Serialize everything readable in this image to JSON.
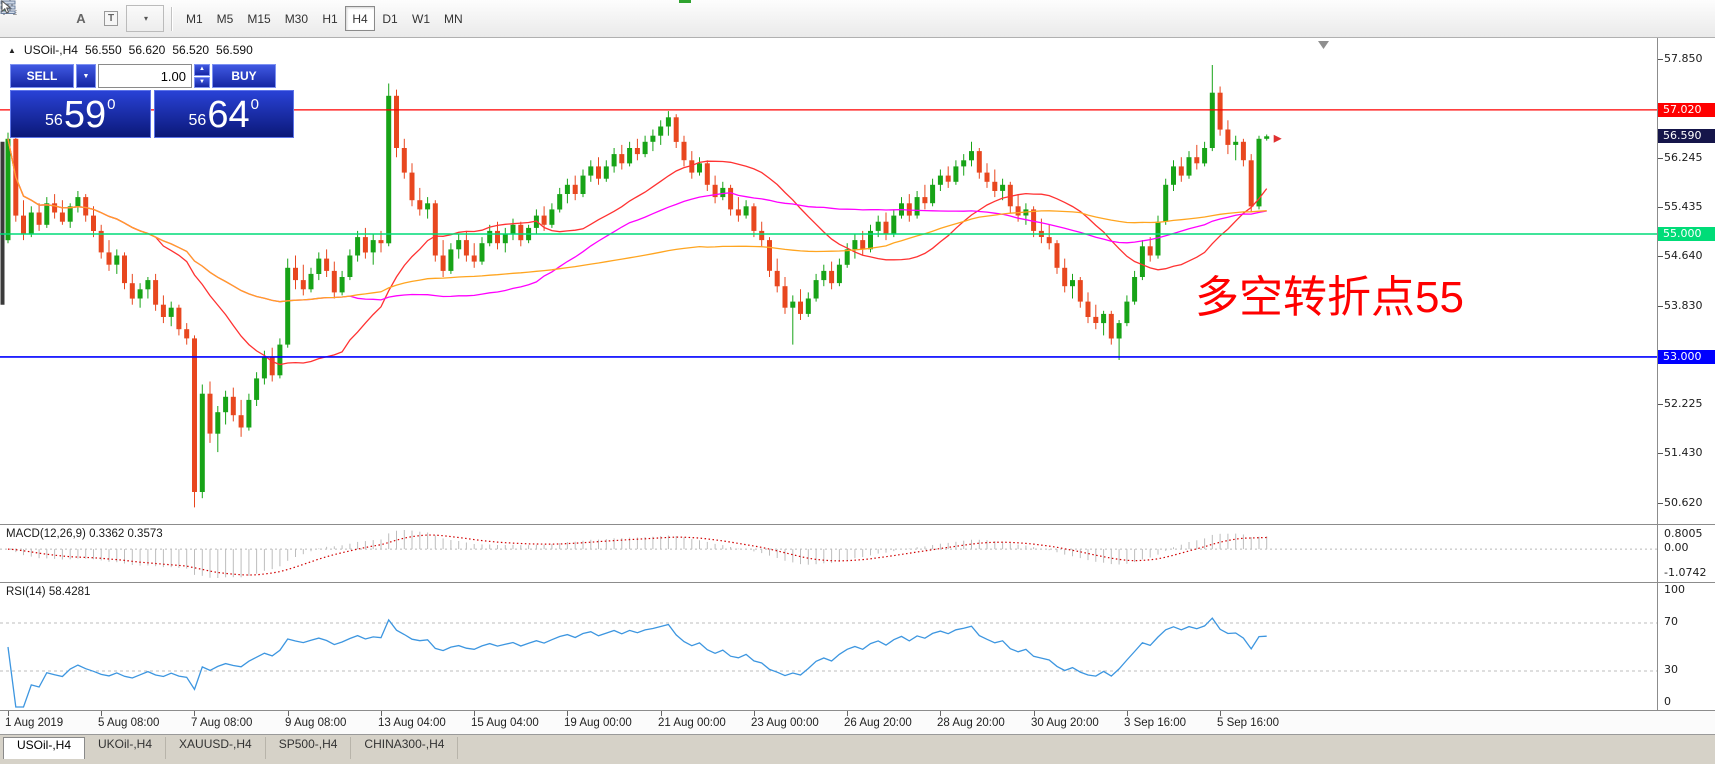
{
  "toolbar": {
    "tool_icons": [
      {
        "name": "candlestick-chart-icon"
      },
      {
        "name": "window-list-icon"
      },
      {
        "name": "font-icon",
        "glyph": "A"
      },
      {
        "name": "text-box-icon",
        "glyph": "T"
      },
      {
        "name": "cursor-tool-icon"
      }
    ],
    "timeframes": [
      {
        "label": "M1",
        "active": false
      },
      {
        "label": "M5",
        "active": false
      },
      {
        "label": "M15",
        "active": false
      },
      {
        "label": "M30",
        "active": false
      },
      {
        "label": "H1",
        "active": false
      },
      {
        "label": "H4",
        "active": true
      },
      {
        "label": "D1",
        "active": false
      },
      {
        "label": "W1",
        "active": false
      },
      {
        "label": "MN",
        "active": false
      }
    ]
  },
  "chart": {
    "symbol_header": "USOil-,H4",
    "ohlc": {
      "open": "56.550",
      "high": "56.620",
      "low": "56.520",
      "close": "56.590"
    },
    "trade_panel": {
      "sell_label": "SELL",
      "buy_label": "BUY",
      "volume": "1.00",
      "sell_price": {
        "main": "56",
        "pips": "59",
        "pipette": "0"
      },
      "buy_price": {
        "main": "56",
        "pips": "64",
        "pipette": "0"
      }
    },
    "annotation": {
      "text": "多空转折点55",
      "color": "#FF0000"
    },
    "colors": {
      "bull": "#17A317",
      "bear": "#E8471F"
    },
    "price_range": {
      "top": 58.19,
      "bottom": 50.28
    },
    "current_price": {
      "value": 56.59,
      "label": "56.590",
      "bg": "#15154A"
    },
    "hlines": [
      {
        "price": 57.02,
        "label": "57.020",
        "color": "#FF0000",
        "width": 1.3
      },
      {
        "price": 55.0,
        "label": "55.000",
        "color": "#00DC78",
        "width": 1.6
      },
      {
        "price": 53.0,
        "label": "53.000",
        "color": "#0000FF",
        "width": 1.6
      }
    ],
    "axis_ticks": [
      {
        "price": 57.85,
        "label": "57.850"
      },
      {
        "price": 56.245,
        "label": "56.245"
      },
      {
        "price": 55.435,
        "label": "55.435"
      },
      {
        "price": 54.64,
        "label": "54.640"
      },
      {
        "price": 53.83,
        "label": "53.830"
      },
      {
        "price": 52.225,
        "label": "52.225"
      },
      {
        "price": 51.43,
        "label": "51.430"
      },
      {
        "price": 50.62,
        "label": "50.620"
      }
    ],
    "ma_lines": [
      {
        "period": 20,
        "color": "#FF3232"
      },
      {
        "period": 45,
        "color": "#FF00FF"
      },
      {
        "period": 90,
        "color": "#FFA520"
      }
    ],
    "chart_data": {
      "type": "candlestick",
      "symbol": "USOil",
      "timeframe": "H4",
      "ylim": [
        50.28,
        58.19
      ],
      "x_labels": [
        {
          "bar": 0,
          "label": "1 Aug 2019"
        },
        {
          "bar": 12,
          "label": "5 Aug 08:00"
        },
        {
          "bar": 24,
          "label": "7 Aug 08:00"
        },
        {
          "bar": 36,
          "label": "9 Aug 08:00"
        },
        {
          "bar": 48,
          "label": "13 Aug 04:00"
        },
        {
          "bar": 60,
          "label": "15 Aug 04:00"
        },
        {
          "bar": 72,
          "label": "19 Aug 00:00"
        },
        {
          "bar": 84,
          "label": "21 Aug 00:00"
        },
        {
          "bar": 96,
          "label": "23 Aug 00:00"
        },
        {
          "bar": 108,
          "label": "26 Aug 20:00"
        },
        {
          "bar": 120,
          "label": "28 Aug 20:00"
        },
        {
          "bar": 132,
          "label": "30 Aug 20:00"
        },
        {
          "bar": 144,
          "label": "3 Sep 16:00"
        },
        {
          "bar": 156,
          "label": "5 Sep 16:00"
        }
      ],
      "candles": [
        [
          54.9,
          56.65,
          54.85,
          56.55
        ],
        [
          56.55,
          56.6,
          55.2,
          55.3
        ],
        [
          55.3,
          55.55,
          54.9,
          55.0
        ],
        [
          55.0,
          55.45,
          54.95,
          55.35
        ],
        [
          55.35,
          55.5,
          55.05,
          55.15
        ],
        [
          55.15,
          55.6,
          55.1,
          55.5
        ],
        [
          55.5,
          55.65,
          55.25,
          55.35
        ],
        [
          55.35,
          55.55,
          55.15,
          55.2
        ],
        [
          55.2,
          55.5,
          55.1,
          55.45
        ],
        [
          55.45,
          55.7,
          55.35,
          55.6
        ],
        [
          55.6,
          55.65,
          55.2,
          55.3
        ],
        [
          55.3,
          55.45,
          54.95,
          55.05
        ],
        [
          55.05,
          55.15,
          54.6,
          54.7
        ],
        [
          54.7,
          54.9,
          54.4,
          54.5
        ],
        [
          54.5,
          54.75,
          54.35,
          54.65
        ],
        [
          54.65,
          54.7,
          54.1,
          54.2
        ],
        [
          54.2,
          54.35,
          53.85,
          53.95
        ],
        [
          53.95,
          54.2,
          53.8,
          54.1
        ],
        [
          54.1,
          54.3,
          53.95,
          54.25
        ],
        [
          54.25,
          54.35,
          53.75,
          53.85
        ],
        [
          53.85,
          54.0,
          53.55,
          53.65
        ],
        [
          53.65,
          53.9,
          53.5,
          53.8
        ],
        [
          53.8,
          53.85,
          53.35,
          53.45
        ],
        [
          53.45,
          53.55,
          53.2,
          53.3
        ],
        [
          53.3,
          53.35,
          50.55,
          50.8
        ],
        [
          50.8,
          52.55,
          50.7,
          52.4
        ],
        [
          52.4,
          52.6,
          51.6,
          51.75
        ],
        [
          51.75,
          52.2,
          51.45,
          52.1
        ],
        [
          52.1,
          52.45,
          51.9,
          52.35
        ],
        [
          52.35,
          52.5,
          51.95,
          52.05
        ],
        [
          52.05,
          52.3,
          51.7,
          51.85
        ],
        [
          51.85,
          52.4,
          51.8,
          52.3
        ],
        [
          52.3,
          52.75,
          52.2,
          52.65
        ],
        [
          52.65,
          53.1,
          52.55,
          53.0
        ],
        [
          53.0,
          53.15,
          52.6,
          52.7
        ],
        [
          52.7,
          53.3,
          52.65,
          53.2
        ],
        [
          53.2,
          54.6,
          53.15,
          54.45
        ],
        [
          54.45,
          54.65,
          54.1,
          54.25
        ],
        [
          54.25,
          54.5,
          54.0,
          54.1
        ],
        [
          54.1,
          54.45,
          54.05,
          54.35
        ],
        [
          54.35,
          54.7,
          54.25,
          54.6
        ],
        [
          54.6,
          54.75,
          54.3,
          54.4
        ],
        [
          54.4,
          54.55,
          53.95,
          54.05
        ],
        [
          54.05,
          54.4,
          54.0,
          54.3
        ],
        [
          54.3,
          54.75,
          54.25,
          54.65
        ],
        [
          54.65,
          55.05,
          54.55,
          54.95
        ],
        [
          54.95,
          55.1,
          54.6,
          54.7
        ],
        [
          54.7,
          55.0,
          54.5,
          54.9
        ],
        [
          54.9,
          55.05,
          54.7,
          54.85
        ],
        [
          54.85,
          57.45,
          54.8,
          57.25
        ],
        [
          57.25,
          57.35,
          56.25,
          56.4
        ],
        [
          56.4,
          56.55,
          55.9,
          56.0
        ],
        [
          56.0,
          56.15,
          55.45,
          55.55
        ],
        [
          55.55,
          55.75,
          55.3,
          55.4
        ],
        [
          55.4,
          55.6,
          55.25,
          55.5
        ],
        [
          55.5,
          55.55,
          54.55,
          54.65
        ],
        [
          54.65,
          54.9,
          54.3,
          54.4
        ],
        [
          54.4,
          54.85,
          54.35,
          54.75
        ],
        [
          54.75,
          55.0,
          54.6,
          54.9
        ],
        [
          54.9,
          55.05,
          54.55,
          54.65
        ],
        [
          54.65,
          54.85,
          54.45,
          54.55
        ],
        [
          54.55,
          54.95,
          54.5,
          54.85
        ],
        [
          54.85,
          55.15,
          54.8,
          55.05
        ],
        [
          55.05,
          55.2,
          54.75,
          54.85
        ],
        [
          54.85,
          55.1,
          54.7,
          55.0
        ],
        [
          55.0,
          55.25,
          54.9,
          55.15
        ],
        [
          55.15,
          55.2,
          54.8,
          54.9
        ],
        [
          54.9,
          55.15,
          54.85,
          55.1
        ],
        [
          55.1,
          55.4,
          55.0,
          55.3
        ],
        [
          55.3,
          55.45,
          55.05,
          55.15
        ],
        [
          55.15,
          55.5,
          55.1,
          55.4
        ],
        [
          55.4,
          55.75,
          55.35,
          55.65
        ],
        [
          55.65,
          55.9,
          55.5,
          55.8
        ],
        [
          55.8,
          55.95,
          55.55,
          55.65
        ],
        [
          55.65,
          56.05,
          55.6,
          55.95
        ],
        [
          55.95,
          56.2,
          55.85,
          56.1
        ],
        [
          56.1,
          56.25,
          55.8,
          55.9
        ],
        [
          55.9,
          56.2,
          55.85,
          56.1
        ],
        [
          56.1,
          56.4,
          56.0,
          56.3
        ],
        [
          56.3,
          56.45,
          56.05,
          56.15
        ],
        [
          56.15,
          56.5,
          56.1,
          56.4
        ],
        [
          56.4,
          56.55,
          56.2,
          56.3
        ],
        [
          56.3,
          56.6,
          56.25,
          56.5
        ],
        [
          56.5,
          56.7,
          56.35,
          56.6
        ],
        [
          56.6,
          56.85,
          56.45,
          56.75
        ],
        [
          56.75,
          57.0,
          56.6,
          56.9
        ],
        [
          56.9,
          56.95,
          56.4,
          56.5
        ],
        [
          56.5,
          56.6,
          56.1,
          56.2
        ],
        [
          56.2,
          56.35,
          55.9,
          56.0
        ],
        [
          56.0,
          56.25,
          55.95,
          56.15
        ],
        [
          56.15,
          56.2,
          55.7,
          55.8
        ],
        [
          55.8,
          55.95,
          55.5,
          55.6
        ],
        [
          55.6,
          55.85,
          55.55,
          55.75
        ],
        [
          55.75,
          55.8,
          55.3,
          55.4
        ],
        [
          55.4,
          55.6,
          55.2,
          55.3
        ],
        [
          55.3,
          55.55,
          55.25,
          55.45
        ],
        [
          55.45,
          55.5,
          54.95,
          55.05
        ],
        [
          55.05,
          55.2,
          54.8,
          54.9
        ],
        [
          54.9,
          54.95,
          54.3,
          54.4
        ],
        [
          54.4,
          54.6,
          54.05,
          54.15
        ],
        [
          54.15,
          54.3,
          53.7,
          53.8
        ],
        [
          53.8,
          54.0,
          53.2,
          53.9
        ],
        [
          53.9,
          54.1,
          53.6,
          53.7
        ],
        [
          53.7,
          54.05,
          53.65,
          53.95
        ],
        [
          53.95,
          54.35,
          53.9,
          54.25
        ],
        [
          54.25,
          54.5,
          54.15,
          54.4
        ],
        [
          54.4,
          54.55,
          54.1,
          54.2
        ],
        [
          54.2,
          54.6,
          54.15,
          54.5
        ],
        [
          54.5,
          54.85,
          54.45,
          54.75
        ],
        [
          54.75,
          55.0,
          54.6,
          54.9
        ],
        [
          54.9,
          55.05,
          54.65,
          54.75
        ],
        [
          54.75,
          55.15,
          54.7,
          55.05
        ],
        [
          55.05,
          55.3,
          54.95,
          55.2
        ],
        [
          55.2,
          55.35,
          54.9,
          55.0
        ],
        [
          55.0,
          55.4,
          54.95,
          55.3
        ],
        [
          55.3,
          55.6,
          55.25,
          55.5
        ],
        [
          55.5,
          55.65,
          55.2,
          55.3
        ],
        [
          55.3,
          55.7,
          55.25,
          55.6
        ],
        [
          55.6,
          55.8,
          55.4,
          55.5
        ],
        [
          55.5,
          55.9,
          55.45,
          55.8
        ],
        [
          55.8,
          56.05,
          55.7,
          55.95
        ],
        [
          55.95,
          56.1,
          55.75,
          55.85
        ],
        [
          55.85,
          56.2,
          55.8,
          56.1
        ],
        [
          56.1,
          56.3,
          55.95,
          56.2
        ],
        [
          56.2,
          56.5,
          56.1,
          56.35
        ],
        [
          56.35,
          56.4,
          55.9,
          56.0
        ],
        [
          56.0,
          56.15,
          55.75,
          55.85
        ],
        [
          55.85,
          56.05,
          55.6,
          55.7
        ],
        [
          55.7,
          55.9,
          55.55,
          55.8
        ],
        [
          55.8,
          55.85,
          55.35,
          55.45
        ],
        [
          55.45,
          55.65,
          55.2,
          55.3
        ],
        [
          55.3,
          55.5,
          55.15,
          55.4
        ],
        [
          55.4,
          55.45,
          54.95,
          55.05
        ],
        [
          55.05,
          55.25,
          54.85,
          54.95
        ],
        [
          54.95,
          55.15,
          54.75,
          54.85
        ],
        [
          54.85,
          54.9,
          54.35,
          54.45
        ],
        [
          54.45,
          54.6,
          54.05,
          54.15
        ],
        [
          54.15,
          54.35,
          53.95,
          54.25
        ],
        [
          54.25,
          54.3,
          53.8,
          53.9
        ],
        [
          53.9,
          54.05,
          53.55,
          53.65
        ],
        [
          53.65,
          53.85,
          53.45,
          53.55
        ],
        [
          53.55,
          53.75,
          53.35,
          53.7
        ],
        [
          53.7,
          53.75,
          53.2,
          53.3
        ],
        [
          53.3,
          53.6,
          52.95,
          53.55
        ],
        [
          53.55,
          54.0,
          53.5,
          53.9
        ],
        [
          53.9,
          54.4,
          53.85,
          54.3
        ],
        [
          54.3,
          54.9,
          54.25,
          54.8
        ],
        [
          54.8,
          54.95,
          54.55,
          54.65
        ],
        [
          54.65,
          55.3,
          54.6,
          55.2
        ],
        [
          55.2,
          55.9,
          55.15,
          55.8
        ],
        [
          55.8,
          56.2,
          55.7,
          56.1
        ],
        [
          56.1,
          56.25,
          55.85,
          55.95
        ],
        [
          55.95,
          56.35,
          55.9,
          56.25
        ],
        [
          56.25,
          56.45,
          56.05,
          56.15
        ],
        [
          56.15,
          56.5,
          56.1,
          56.4
        ],
        [
          56.4,
          57.75,
          56.35,
          57.3
        ],
        [
          57.3,
          57.4,
          56.6,
          56.7
        ],
        [
          56.7,
          56.85,
          56.3,
          56.45
        ],
        [
          56.45,
          56.6,
          56.2,
          56.5
        ],
        [
          56.5,
          56.55,
          56.1,
          56.2
        ],
        [
          56.2,
          56.3,
          55.35,
          55.45
        ],
        [
          55.45,
          56.6,
          55.4,
          56.55
        ],
        [
          56.55,
          56.62,
          56.52,
          56.59
        ]
      ]
    }
  },
  "macd": {
    "header": "MACD(12,26,9) 0.3362 0.3573",
    "fast": 12,
    "slow": 26,
    "signal": 9,
    "axis_labels": [
      "0.8005",
      "0.00",
      "-1.0742"
    ],
    "colors": {
      "histogram": "#BDBDBD",
      "signal": "#D00000"
    }
  },
  "rsi": {
    "header": "RSI(14) 58.4281",
    "period": 14,
    "axis_labels": [
      "100",
      "70",
      "30",
      "0"
    ],
    "levels": [
      70,
      30
    ],
    "color": "#3D96E0"
  },
  "tabs": [
    {
      "label": "USOil-,H4",
      "active": true
    },
    {
      "label": "UKOil-,H4",
      "active": false
    },
    {
      "label": "XAUUSD-,H4",
      "active": false
    },
    {
      "label": "SP500-,H4",
      "active": false
    },
    {
      "label": "CHINA300-,H4",
      "active": false
    }
  ]
}
